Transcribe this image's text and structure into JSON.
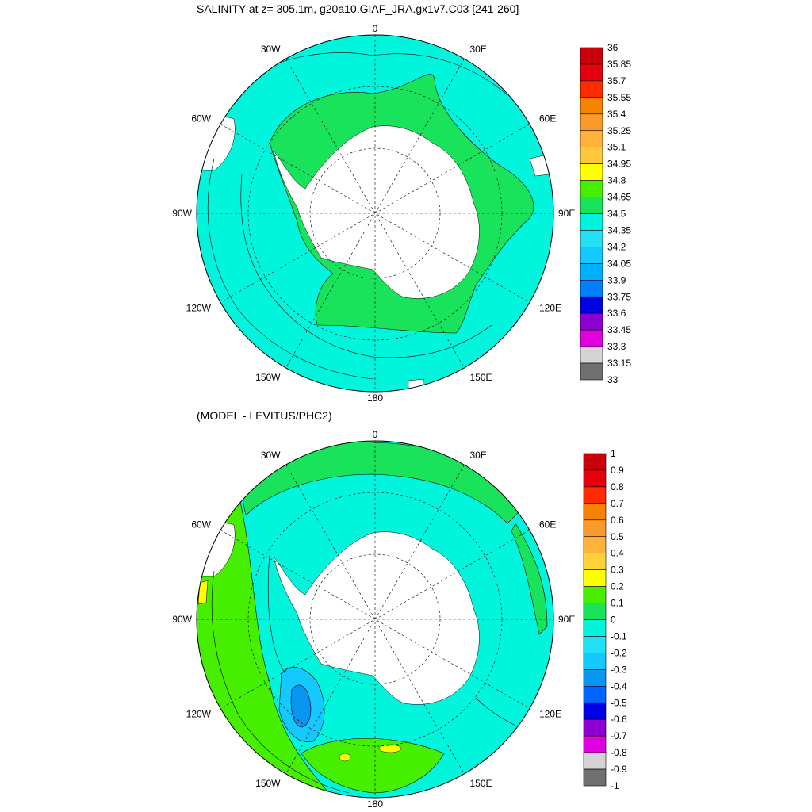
{
  "panels": [
    {
      "id": "salinity",
      "title": "SALINITY at z= 305.1m, g20a10.GIAF_JRA.gx1v7.C03 [241-260]",
      "lon_labels": [
        "0",
        "30E",
        "60E",
        "90E",
        "120E",
        "150E",
        "180",
        "150W",
        "120W",
        "90W",
        "60W",
        "30W"
      ],
      "colorbar_labels": [
        "36",
        "35.85",
        "35.7",
        "35.55",
        "35.4",
        "35.25",
        "35.1",
        "34.95",
        "34.8",
        "34.65",
        "34.5",
        "34.35",
        "34.2",
        "34.05",
        "33.9",
        "33.75",
        "33.6",
        "33.45",
        "33.3",
        "33.15",
        "33"
      ],
      "colorbar_colors": [
        "#c8000a",
        "#e5000e",
        "#ff2a00",
        "#f58200",
        "#fa9a2a",
        "#ffb23a",
        "#ffc83c",
        "#ffff00",
        "#46ee00",
        "#19e35a",
        "#00f5dc",
        "#22e1f5",
        "#15c8ff",
        "#00b0ff",
        "#0080ff",
        "#0000e6",
        "#8c00d2",
        "#e100e1",
        "#d4d4d4",
        "#707070"
      ],
      "region_colors": {
        "ocean_base": "#00f5dc",
        "band": "#19e35a",
        "deep": "#22e1f5",
        "land": "#ffffff"
      }
    },
    {
      "id": "difference",
      "title": "(MODEL - LEVITUS/PHC2)",
      "lon_labels": [
        "0",
        "30E",
        "60E",
        "90E",
        "120E",
        "150E",
        "180",
        "150W",
        "120W",
        "90W",
        "60W",
        "30W"
      ],
      "colorbar_labels": [
        "1",
        "0.9",
        "0.8",
        "0.7",
        "0.6",
        "0.5",
        "0.4",
        "0.3",
        "0.2",
        "0.1",
        "0",
        "-0.1",
        "-0.2",
        "-0.3",
        "-0.4",
        "-0.5",
        "-0.6",
        "-0.7",
        "-0.8",
        "-0.9",
        "-1"
      ],
      "colorbar_colors": [
        "#c8000a",
        "#e5000e",
        "#ff2a00",
        "#f58200",
        "#fa9a2a",
        "#ffb23a",
        "#ffd23a",
        "#ffff00",
        "#46ee00",
        "#19e35a",
        "#00f5dc",
        "#22e1f5",
        "#15c8ff",
        "#0a96f0",
        "#0064ff",
        "#0000e6",
        "#8c00d2",
        "#e100e1",
        "#d4d4d4",
        "#707070"
      ],
      "region_colors": {
        "ocean_base": "#00f5dc",
        "green": "#46ee00",
        "band": "#19e35a",
        "blue": "#15c8ff",
        "dark": "#0a96f0",
        "yellow": "#ffff00",
        "land": "#ffffff"
      }
    }
  ]
}
